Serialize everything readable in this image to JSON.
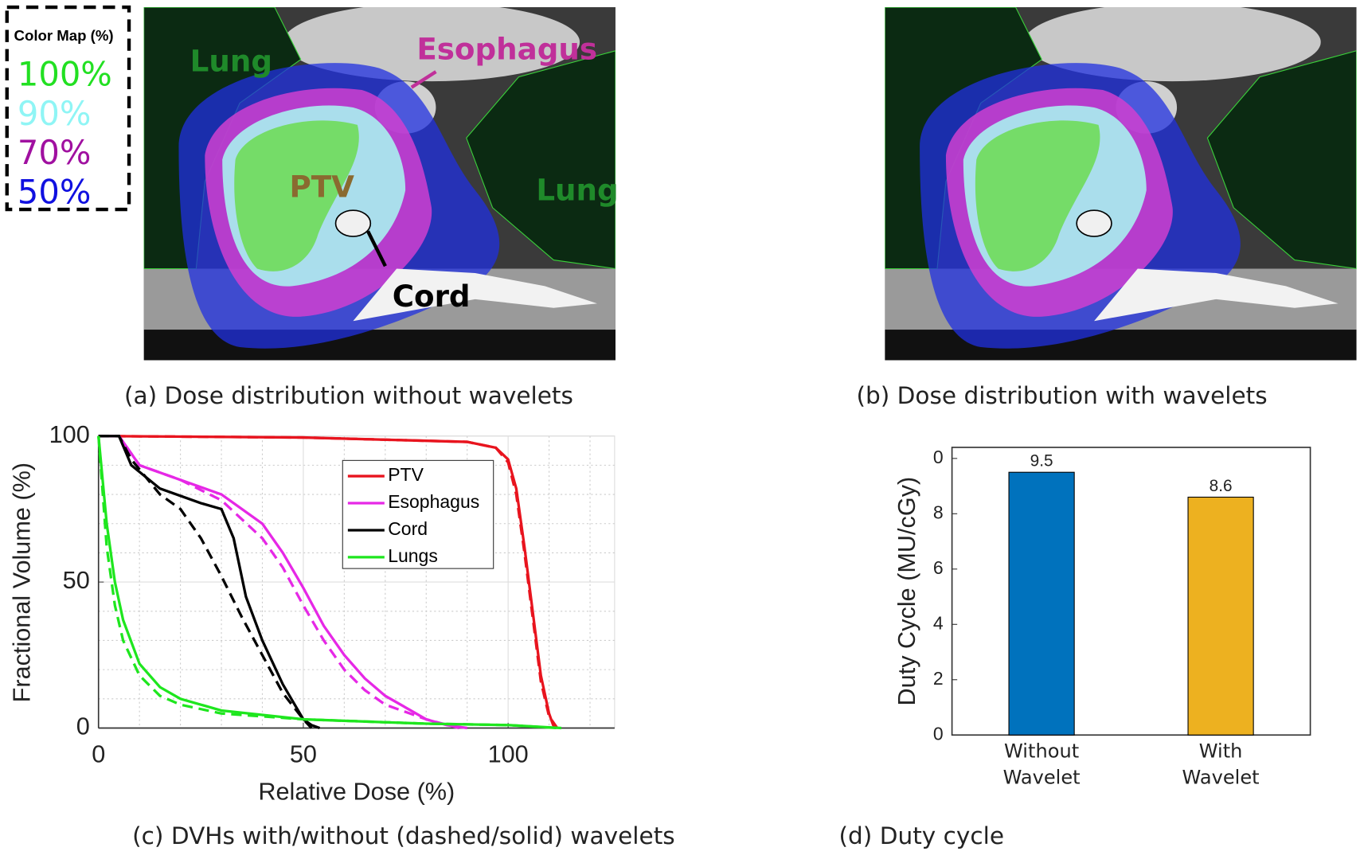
{
  "figure": {
    "panels": [
      {
        "caption": "(a) Dose distribution without wavelets",
        "labels": [
          "Lung",
          "Esophagus",
          "PTV",
          "Lung",
          "Cord"
        ]
      },
      {
        "caption": "(b) Dose distribution with wavelets"
      }
    ],
    "color_map": {
      "title": "Color Map (%)",
      "entries": [
        {
          "label": "100%",
          "color": "#22e022"
        },
        {
          "label": "90%",
          "color": "#8ff5f5"
        },
        {
          "label": "70%",
          "color": "#a010a0"
        },
        {
          "label": "50%",
          "color": "#1010e0"
        }
      ]
    }
  },
  "chart_data": [
    {
      "type": "line",
      "caption": "(c) DVHs with/without (dashed/solid) wavelets",
      "xlabel": "Relative Dose (%)",
      "ylabel": "Fractional Volume (%)",
      "xlim": [
        0,
        126
      ],
      "ylim": [
        0,
        100
      ],
      "xticks": [
        0,
        50,
        100
      ],
      "yticks": [
        0,
        50,
        100
      ],
      "minor_grid_xticks": [
        10,
        20,
        30,
        40,
        60,
        70,
        80,
        90,
        110,
        120
      ],
      "minor_grid_yticks": [
        10,
        20,
        30,
        40,
        60,
        70,
        80,
        90
      ],
      "grid": true,
      "legend": "upper right",
      "series": [
        {
          "name": "PTV",
          "color": "#e8141e",
          "x": [
            0,
            50,
            90,
            97,
            100,
            102,
            104,
            106,
            108,
            110,
            111,
            112
          ],
          "values": [
            100,
            99.5,
            98,
            96,
            92,
            82,
            62,
            40,
            18,
            5,
            1,
            0
          ],
          "x_dashed": [
            0,
            50,
            90,
            97,
            100,
            102,
            104,
            106,
            108,
            110,
            112
          ],
          "values_dashed": [
            100,
            99.5,
            98,
            96,
            91,
            80,
            60,
            38,
            16,
            4,
            0
          ]
        },
        {
          "name": "Esophagus",
          "color": "#e628e6",
          "x": [
            0,
            5,
            10,
            20,
            30,
            40,
            45,
            50,
            55,
            60,
            65,
            70,
            75,
            80,
            85,
            90
          ],
          "values": [
            100,
            100,
            90,
            85,
            80,
            70,
            60,
            48,
            35,
            25,
            17,
            11,
            7,
            3,
            1,
            0
          ],
          "x_dashed": [
            0,
            5,
            10,
            20,
            30,
            40,
            45,
            50,
            55,
            60,
            65,
            70,
            80,
            88
          ],
          "values_dashed": [
            100,
            100,
            90,
            85,
            78,
            65,
            55,
            42,
            30,
            20,
            13,
            8,
            3,
            0
          ]
        },
        {
          "name": "Cord",
          "color": "#000000",
          "x": [
            0,
            5,
            8,
            15,
            25,
            30,
            33,
            36,
            40,
            45,
            50,
            52,
            54
          ],
          "values": [
            100,
            100,
            90,
            82,
            77,
            75,
            65,
            45,
            30,
            15,
            3,
            1,
            0
          ],
          "x_dashed": [
            0,
            5,
            8,
            15,
            20,
            25,
            30,
            35,
            40,
            45,
            50,
            52
          ],
          "values_dashed": [
            100,
            100,
            92,
            80,
            75,
            65,
            52,
            38,
            25,
            12,
            3,
            0
          ]
        },
        {
          "name": "Lungs",
          "color": "#1ee61e",
          "x": [
            0,
            2,
            4,
            6,
            10,
            15,
            20,
            30,
            50,
            80,
            100,
            113
          ],
          "values": [
            100,
            70,
            50,
            37,
            22,
            14,
            10,
            6,
            3,
            1.5,
            1,
            0
          ],
          "x_dashed": [
            0,
            2,
            4,
            6,
            10,
            15,
            20,
            30,
            50,
            80,
            100,
            112
          ],
          "values_dashed": [
            100,
            62,
            42,
            30,
            18,
            11,
            8,
            5,
            3,
            1.5,
            1,
            0
          ]
        }
      ]
    },
    {
      "type": "bar",
      "caption": "(d) Duty cycle",
      "ylabel": "Duty Cycle (MU/cGy)",
      "categories": [
        "Without Wavelet",
        "With Wavelet"
      ],
      "values": [
        9.5,
        8.6
      ],
      "colors": [
        "#0072bd",
        "#edb120"
      ],
      "ylim": [
        0,
        10.4
      ],
      "yticks": [
        0,
        2,
        4,
        6,
        8,
        {
          "value": 10,
          "label": "0"
        }
      ]
    }
  ]
}
